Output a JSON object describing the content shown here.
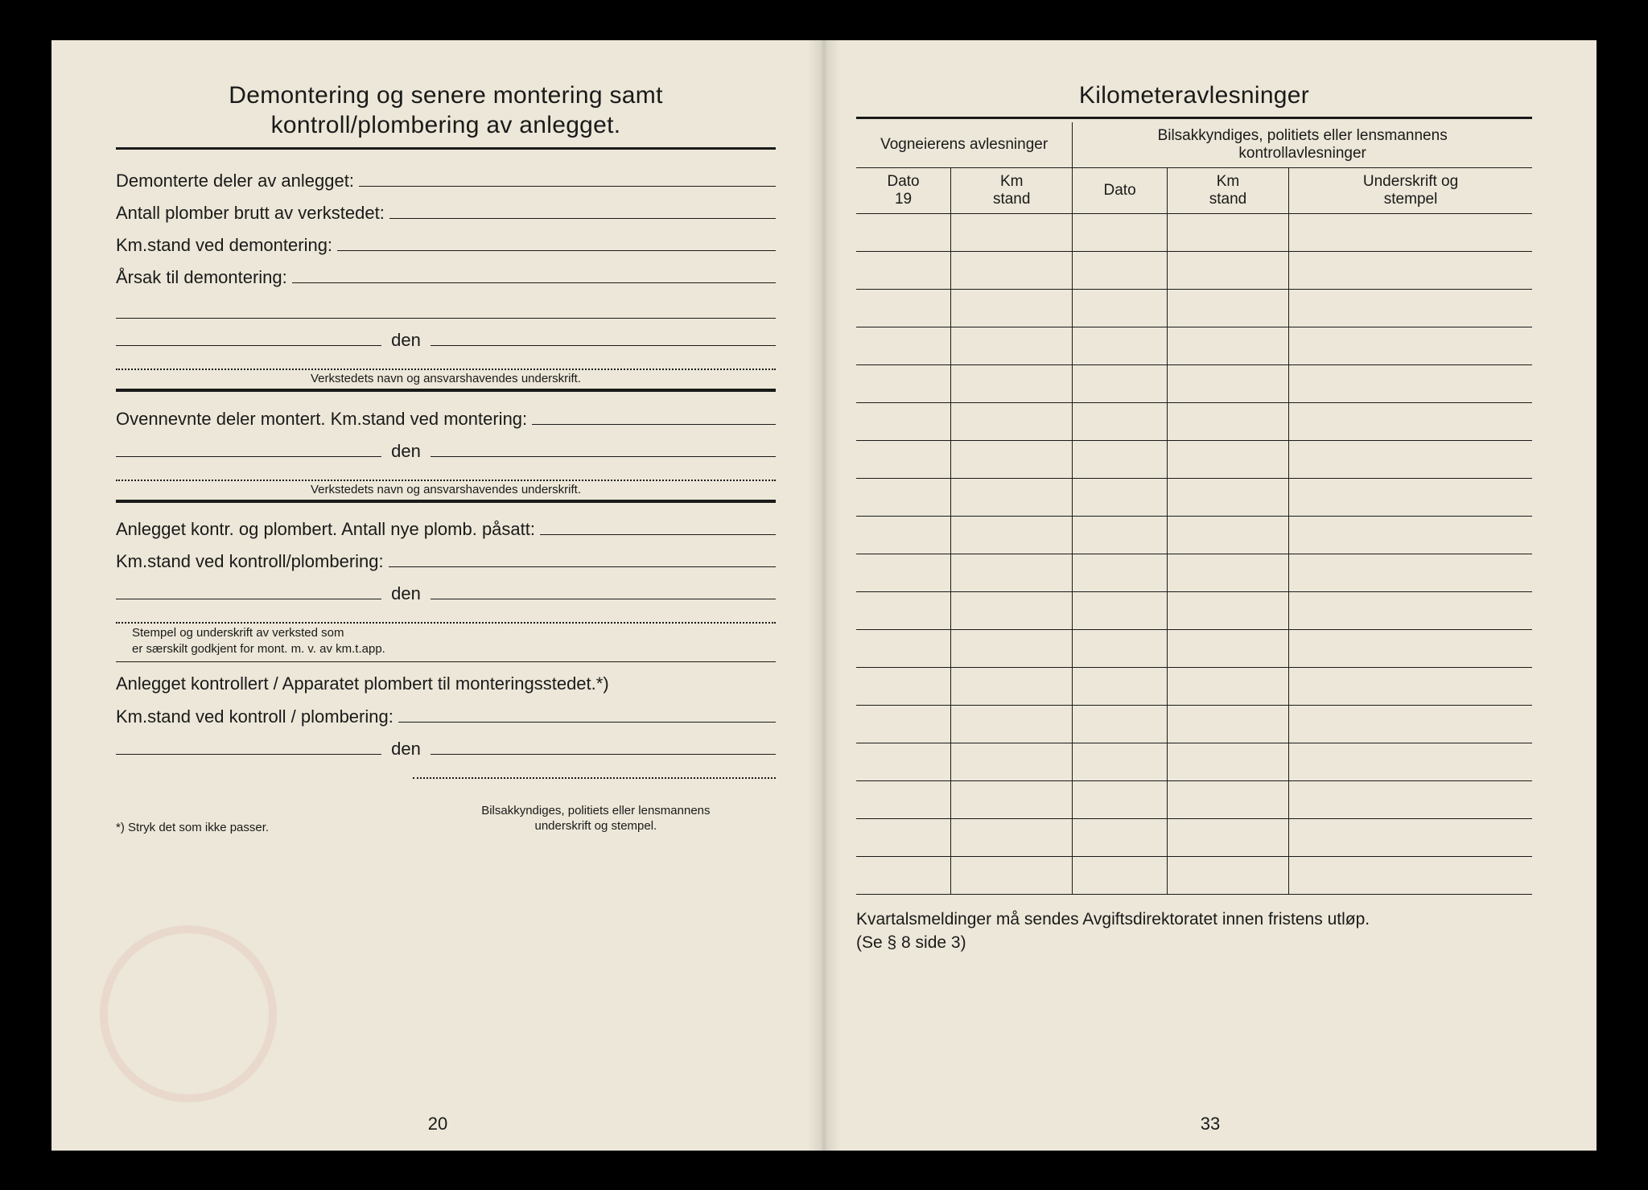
{
  "left": {
    "title_line1": "Demontering og senere montering samt",
    "title_line2": "kontroll/plombering av anlegget.",
    "fields": {
      "demonterte": "Demonterte deler av anlegget:",
      "antall_plomber": "Antall plomber brutt av verkstedet:",
      "km_demontering": "Km.stand ved demontering:",
      "arsak": "Årsak til demontering:",
      "den": "den",
      "caption_verksted": "Verkstedets navn og ansvarshavendes underskrift.",
      "ovennevnte": "Ovennevnte deler montert.  Km.stand ved montering:",
      "anlegget_kontr": "Anlegget kontr. og plombert. Antall nye plomb. påsatt:",
      "km_kontroll": "Km.stand ved kontroll/plombering:",
      "caption_stempel1": "Stempel og underskrift av verksted som",
      "caption_stempel2": "er særskilt godkjent for mont. m. v. av km.t.app.",
      "anlegget_kontrollert": "Anlegget kontrollert / Apparatet plombert til monteringsstedet.*)",
      "km_kontroll2": "Km.stand ved kontroll / plombering:",
      "footnote_left": "*) Stryk det som ikke passer.",
      "footnote_right1": "Bilsakkyndiges, politiets eller lensmannens",
      "footnote_right2": "underskrift og stempel."
    },
    "page_number": "20"
  },
  "right": {
    "title": "Kilometeravlesninger",
    "table": {
      "group_left": "Vogneierens avlesninger",
      "group_right_l1": "Bilsakkyndiges, politiets eller lensmannens",
      "group_right_l2": "kontrollavlesninger",
      "col_dato_l1": "Dato",
      "col_dato_l2": "19",
      "col_km_l1": "Km",
      "col_km_l2": "stand",
      "col_dato2": "Dato",
      "col_sig_l1": "Underskrift og",
      "col_sig_l2": "stempel",
      "row_count": 18,
      "col_widths_pct": [
        10,
        13,
        10,
        13,
        24
      ]
    },
    "note_l1": "Kvartalsmeldinger må sendes Avgiftsdirektoratet innen fristens utløp.",
    "note_l2": "(Se § 8 side 3)",
    "page_number": "33"
  },
  "colors": {
    "paper": "#ece7d8",
    "ink": "#1a1a1a",
    "background": "#000000"
  }
}
